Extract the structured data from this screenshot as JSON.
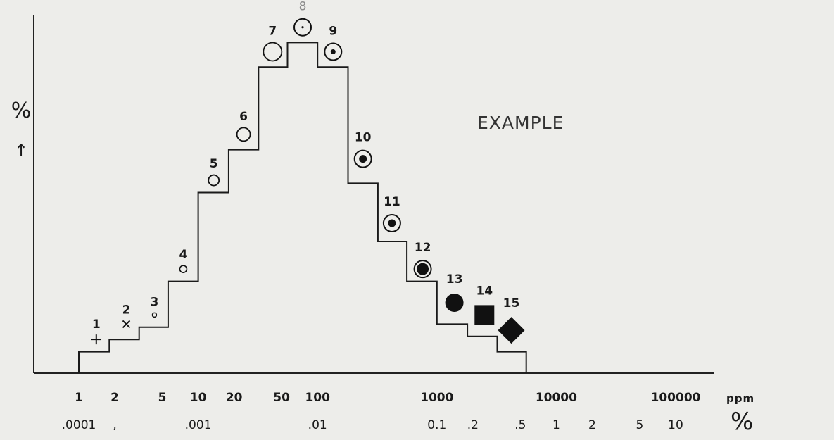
{
  "chart_data": {
    "type": "step",
    "title": "",
    "annotation": "EXAMPLE",
    "ylabel": "%",
    "ylabel_arrow": "↑",
    "x_unit_top": "ppm",
    "x_unit_bottom": "%",
    "x_scale": "log",
    "ticks_ppm": [
      {
        "value": 1,
        "label": "1"
      },
      {
        "value": 2,
        "label": "2"
      },
      {
        "value": 5,
        "label": "5"
      },
      {
        "value": 10,
        "label": "10"
      },
      {
        "value": 20,
        "label": "20"
      },
      {
        "value": 50,
        "label": "50"
      },
      {
        "value": 100,
        "label": "100"
      },
      {
        "value": 1000,
        "label": "1000"
      },
      {
        "value": 10000,
        "label": "10000"
      },
      {
        "value": 100000,
        "label": "100000"
      }
    ],
    "ticks_percent": [
      {
        "value": 1,
        "label": ".0001"
      },
      {
        "value": 2,
        "label": ","
      },
      {
        "value": 10,
        "label": ".001"
      },
      {
        "value": 100,
        "label": ".01"
      },
      {
        "value": 1000,
        "label": "0.1"
      },
      {
        "value": 2000,
        "label": ".2"
      },
      {
        "value": 5000,
        "label": ".5"
      },
      {
        "value": 10000,
        "label": "1"
      },
      {
        "value": 20000,
        "label": "2"
      },
      {
        "value": 50000,
        "label": "5"
      },
      {
        "value": 100000,
        "label": "10"
      }
    ],
    "steps": [
      {
        "class": "1",
        "x_from": 1.0,
        "x_to": 1.8,
        "y": 0.7
      },
      {
        "class": "2",
        "x_from": 1.8,
        "x_to": 3.2,
        "y": 1.1
      },
      {
        "class": "3",
        "x_from": 3.2,
        "x_to": 5.6,
        "y": 1.5
      },
      {
        "class": "4",
        "x_from": 5.6,
        "x_to": 10,
        "y": 3.0
      },
      {
        "class": "5",
        "x_from": 10,
        "x_to": 18,
        "y": 5.9
      },
      {
        "class": "6",
        "x_from": 18,
        "x_to": 32,
        "y": 7.3
      },
      {
        "class": "7",
        "x_from": 32,
        "x_to": 56,
        "y": 10.0
      },
      {
        "class": "8",
        "x_from": 56,
        "x_to": 100,
        "y": 10.8
      },
      {
        "class": "9",
        "x_from": 100,
        "x_to": 180,
        "y": 10.0
      },
      {
        "class": "10",
        "x_from": 180,
        "x_to": 320,
        "y": 6.2
      },
      {
        "class": "11",
        "x_from": 320,
        "x_to": 560,
        "y": 4.3
      },
      {
        "class": "12",
        "x_from": 560,
        "x_to": 1000,
        "y": 3.0
      },
      {
        "class": "13",
        "x_from": 1000,
        "x_to": 1800,
        "y": 1.6
      },
      {
        "class": "14",
        "x_from": 1800,
        "x_to": 3200,
        "y": 1.2
      },
      {
        "class": "15",
        "x_from": 3200,
        "x_to": 5600,
        "y": 0.7
      }
    ],
    "symbols": [
      {
        "label": "1",
        "x": 1.4,
        "y": 1.1,
        "symbol": "plus",
        "label_color": "#1a1a1a"
      },
      {
        "label": "2",
        "x": 2.5,
        "y": 1.6,
        "symbol": "cross",
        "label_color": "#1a1a1a"
      },
      {
        "label": "3",
        "x": 4.3,
        "y": 1.9,
        "symbol": "dot-ring",
        "label_color": "#1a1a1a"
      },
      {
        "label": "4",
        "x": 7.5,
        "y": 3.4,
        "symbol": "small-circle",
        "label_color": "#1a1a1a"
      },
      {
        "label": "5",
        "x": 13.5,
        "y": 6.3,
        "symbol": "medium-circle",
        "label_color": "#1a1a1a"
      },
      {
        "label": "6",
        "x": 24,
        "y": 7.8,
        "symbol": "circle",
        "label_color": "#1a1a1a"
      },
      {
        "label": "7",
        "x": 42,
        "y": 10.5,
        "symbol": "large-circle",
        "label_color": "#1a1a1a"
      },
      {
        "label": "8",
        "x": 75,
        "y": 11.3,
        "symbol": "circle-center-dot",
        "label_color": "#8a8a8a"
      },
      {
        "label": "9",
        "x": 135,
        "y": 10.5,
        "symbol": "circle-small-disc",
        "label_color": "#1a1a1a"
      },
      {
        "label": "10",
        "x": 240,
        "y": 7.0,
        "symbol": "circle-disc",
        "label_color": "#1a1a1a"
      },
      {
        "label": "11",
        "x": 420,
        "y": 4.9,
        "symbol": "circle-disc",
        "label_color": "#1a1a1a"
      },
      {
        "label": "12",
        "x": 760,
        "y": 3.4,
        "symbol": "ring-disc",
        "label_color": "#1a1a1a"
      },
      {
        "label": "13",
        "x": 1400,
        "y": 2.3,
        "symbol": "filled-circle",
        "label_color": "#1a1a1a"
      },
      {
        "label": "14",
        "x": 2500,
        "y": 1.9,
        "symbol": "filled-square",
        "label_color": "#1a1a1a"
      },
      {
        "label": "15",
        "x": 4200,
        "y": 1.4,
        "symbol": "filled-diamond",
        "label_color": "#1a1a1a"
      }
    ],
    "y_range": [
      0,
      11.5
    ],
    "grid": false,
    "line_color": "#1a1a1a"
  }
}
